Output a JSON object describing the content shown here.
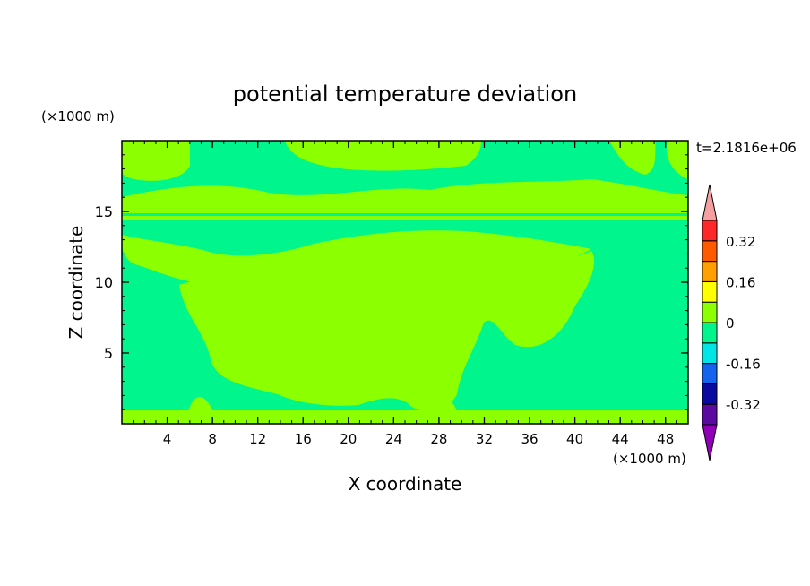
{
  "chart_data": {
    "type": "heatmap",
    "title": "potential temperature deviation",
    "time_label": "t=2.1816e+06",
    "xlabel": "X coordinate",
    "ylabel": "Z coordinate",
    "x_unit": "(×1000 m)",
    "y_unit": "(×1000 m)",
    "xlim": [
      0,
      50
    ],
    "ylim": [
      0,
      20
    ],
    "x_ticks": [
      4,
      8,
      12,
      16,
      20,
      24,
      28,
      32,
      36,
      40,
      44,
      48
    ],
    "y_ticks": [
      5,
      10,
      15
    ],
    "colorbar": {
      "labels": [
        "0.32",
        "0.16",
        "0",
        "-0.16",
        "-0.32"
      ],
      "label_values": [
        0.32,
        0.16,
        0,
        -0.16,
        -0.32
      ],
      "levels": [
        -0.4,
        -0.32,
        -0.24,
        -0.16,
        -0.08,
        0,
        0.08,
        0.16,
        0.24,
        0.32,
        0.4
      ],
      "colors": [
        "#8f00b8",
        "#5a0aa0",
        "#0a0aa0",
        "#1464f0",
        "#00e6e6",
        "#00f58c",
        "#8cff00",
        "#ffff00",
        "#ffa000",
        "#ff5a00",
        "#ff2828",
        "#f5a0a0"
      ],
      "extend": "both"
    },
    "field_colors": {
      "negative": "#00f58c",
      "positive": "#8cff00"
    }
  }
}
